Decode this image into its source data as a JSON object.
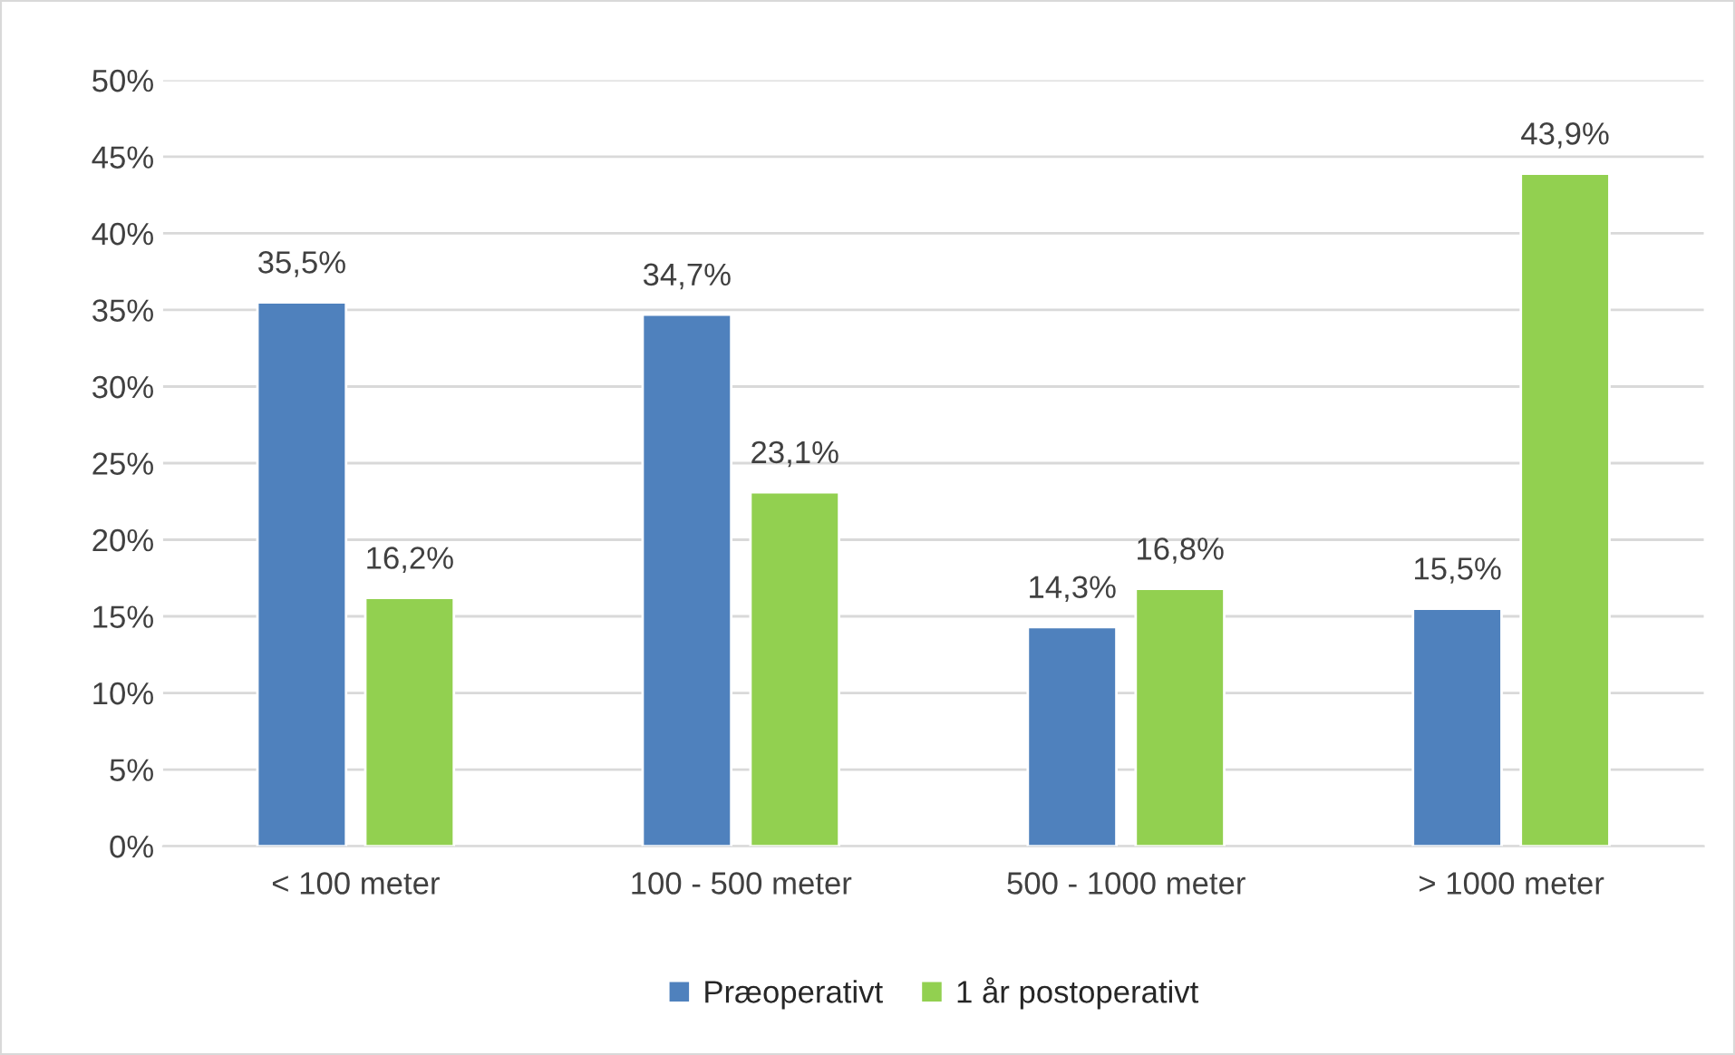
{
  "chart_data": {
    "type": "bar",
    "categories": [
      "< 100 meter",
      "100 - 500 meter",
      "500 - 1000 meter",
      "> 1000 meter"
    ],
    "series": [
      {
        "name": "Præoperativt",
        "color": "#4f81bd",
        "values": [
          35.5,
          34.7,
          14.3,
          15.5
        ],
        "value_labels": [
          "35,5%",
          "34,7%",
          "14,3%",
          "15,5%"
        ]
      },
      {
        "name": "1 år postoperativt",
        "color": "#92d050",
        "values": [
          16.2,
          23.1,
          16.8,
          43.9
        ],
        "value_labels": [
          "16,2%",
          "23,1%",
          "16,8%",
          "43,9%"
        ]
      }
    ],
    "ylim": [
      0,
      50
    ],
    "yticks": [
      {
        "value": 0,
        "label": "0%"
      },
      {
        "value": 5,
        "label": "5%"
      },
      {
        "value": 10,
        "label": "10%"
      },
      {
        "value": 15,
        "label": "15%"
      },
      {
        "value": 20,
        "label": "20%"
      },
      {
        "value": 25,
        "label": "25%"
      },
      {
        "value": 30,
        "label": "30%"
      },
      {
        "value": 35,
        "label": "35%"
      },
      {
        "value": 40,
        "label": "40%"
      },
      {
        "value": 45,
        "label": "45%"
      },
      {
        "value": 50,
        "label": "50%"
      }
    ],
    "grid": "y",
    "legend": "bottom"
  }
}
